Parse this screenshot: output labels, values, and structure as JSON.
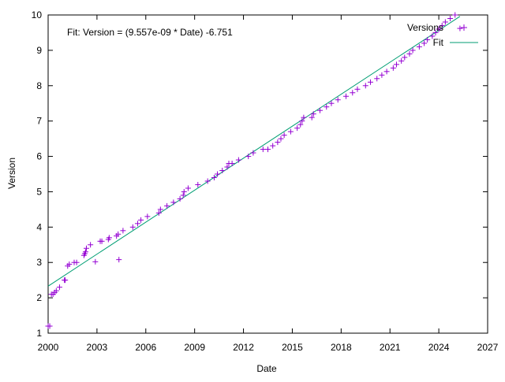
{
  "chart_data": {
    "type": "scatter",
    "annotation": "Fit: Version = (9.557e-09 * Date) -6.751",
    "xlabel": "Date",
    "ylabel": "Version",
    "xlim": [
      2000,
      2027
    ],
    "ylim": [
      1,
      10
    ],
    "x_ticks": [
      2000,
      2003,
      2006,
      2009,
      2012,
      2015,
      2018,
      2021,
      2024,
      2027
    ],
    "y_ticks": [
      1,
      2,
      3,
      4,
      5,
      6,
      7,
      8,
      9,
      10
    ],
    "grid": false,
    "legend_position": "top-right",
    "legend": [
      {
        "label": "Versions",
        "color": "#9400d3",
        "marker": "plus"
      },
      {
        "label": "Fit",
        "color": "#009e73",
        "marker": "line"
      }
    ],
    "series": [
      {
        "name": "Versions",
        "color": "#9400d3",
        "marker": "plus",
        "points": [
          [
            2000.0,
            1.2
          ],
          [
            2000.1,
            1.2
          ],
          [
            2000.2,
            2.1
          ],
          [
            2000.3,
            2.1
          ],
          [
            2000.4,
            2.15
          ],
          [
            2000.5,
            2.2
          ],
          [
            2000.7,
            2.3
          ],
          [
            2001.0,
            2.5
          ],
          [
            2001.05,
            2.5
          ],
          [
            2001.2,
            2.9
          ],
          [
            2001.3,
            2.95
          ],
          [
            2001.6,
            3.0
          ],
          [
            2001.75,
            3.0
          ],
          [
            2002.2,
            3.2
          ],
          [
            2002.25,
            3.25
          ],
          [
            2002.3,
            3.3
          ],
          [
            2002.35,
            3.4
          ],
          [
            2002.6,
            3.5
          ],
          [
            2002.9,
            3.02
          ],
          [
            2003.2,
            3.6
          ],
          [
            2003.3,
            3.6
          ],
          [
            2003.7,
            3.65
          ],
          [
            2003.75,
            3.7
          ],
          [
            2004.2,
            3.75
          ],
          [
            2004.3,
            3.8
          ],
          [
            2004.35,
            3.08
          ],
          [
            2004.6,
            3.9
          ],
          [
            2005.2,
            4.0
          ],
          [
            2005.5,
            4.1
          ],
          [
            2005.7,
            4.2
          ],
          [
            2006.1,
            4.3
          ],
          [
            2006.8,
            4.4
          ],
          [
            2006.9,
            4.5
          ],
          [
            2007.3,
            4.6
          ],
          [
            2007.7,
            4.7
          ],
          [
            2008.1,
            4.8
          ],
          [
            2008.3,
            4.9
          ],
          [
            2008.35,
            5.0
          ],
          [
            2008.6,
            5.1
          ],
          [
            2009.2,
            5.2
          ],
          [
            2009.8,
            5.3
          ],
          [
            2010.2,
            5.4
          ],
          [
            2010.4,
            5.5
          ],
          [
            2010.7,
            5.6
          ],
          [
            2011.0,
            5.7
          ],
          [
            2011.1,
            5.8
          ],
          [
            2011.3,
            5.8
          ],
          [
            2011.7,
            5.9
          ],
          [
            2012.3,
            6.0
          ],
          [
            2012.6,
            6.1
          ],
          [
            2013.2,
            6.2
          ],
          [
            2013.5,
            6.2
          ],
          [
            2013.8,
            6.3
          ],
          [
            2014.1,
            6.4
          ],
          [
            2014.3,
            6.5
          ],
          [
            2014.5,
            6.6
          ],
          [
            2014.9,
            6.7
          ],
          [
            2015.3,
            6.8
          ],
          [
            2015.5,
            6.9
          ],
          [
            2015.6,
            7.0
          ],
          [
            2015.7,
            7.1
          ],
          [
            2016.2,
            7.1
          ],
          [
            2016.3,
            7.2
          ],
          [
            2016.7,
            7.3
          ],
          [
            2017.1,
            7.4
          ],
          [
            2017.4,
            7.5
          ],
          [
            2017.8,
            7.6
          ],
          [
            2018.3,
            7.7
          ],
          [
            2018.7,
            7.8
          ],
          [
            2019.0,
            7.9
          ],
          [
            2019.5,
            8.0
          ],
          [
            2019.8,
            8.1
          ],
          [
            2020.2,
            8.2
          ],
          [
            2020.5,
            8.3
          ],
          [
            2020.8,
            8.4
          ],
          [
            2021.2,
            8.5
          ],
          [
            2021.4,
            8.6
          ],
          [
            2021.7,
            8.7
          ],
          [
            2021.9,
            8.8
          ],
          [
            2022.2,
            8.9
          ],
          [
            2022.4,
            9.0
          ],
          [
            2022.8,
            9.1
          ],
          [
            2023.1,
            9.2
          ],
          [
            2023.3,
            9.3
          ],
          [
            2023.6,
            9.4
          ],
          [
            2023.8,
            9.5
          ],
          [
            2024.0,
            9.6
          ],
          [
            2024.2,
            9.7
          ],
          [
            2024.4,
            9.8
          ],
          [
            2024.7,
            9.9
          ],
          [
            2025.0,
            10.0
          ],
          [
            2025.3,
            9.62
          ]
        ]
      },
      {
        "name": "Fit",
        "color": "#009e73",
        "type": "line",
        "points": [
          [
            2000.0,
            2.33
          ],
          [
            2025.3,
            9.96
          ]
        ]
      }
    ]
  }
}
